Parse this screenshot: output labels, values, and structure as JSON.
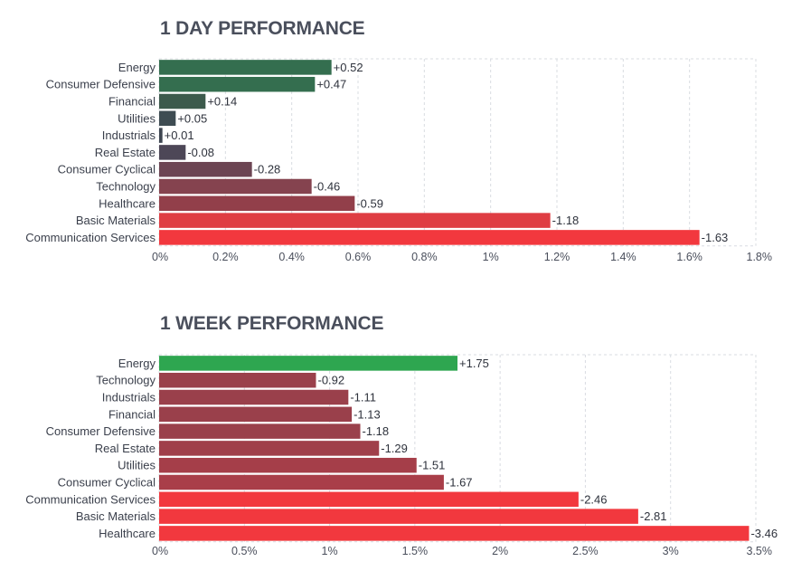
{
  "chart_data": [
    {
      "type": "bar",
      "orientation": "horizontal",
      "title": "1 DAY PERFORMANCE",
      "categories": [
        "Energy",
        "Consumer Defensive",
        "Financial",
        "Utilities",
        "Industrials",
        "Real Estate",
        "Consumer Cyclical",
        "Technology",
        "Healthcare",
        "Basic Materials",
        "Communication Services"
      ],
      "values": [
        0.52,
        0.47,
        0.14,
        0.05,
        0.01,
        -0.08,
        -0.28,
        -0.46,
        -0.59,
        -1.18,
        -1.63
      ],
      "value_labels": [
        "+0.52",
        "+0.47",
        "+0.14",
        "+0.05",
        "+0.01",
        "-0.08",
        "-0.28",
        "-0.46",
        "-0.59",
        "-1.18",
        "-1.63"
      ],
      "bar_colors": [
        "#346e4f",
        "#346e4f",
        "#3c5a4c",
        "#3e4c52",
        "#3d4550",
        "#4d4757",
        "#6c4553",
        "#85434f",
        "#923f4a",
        "#df3d43",
        "#f2383e"
      ],
      "xlim": [
        0,
        1.8
      ],
      "xticks": [
        "0%",
        "0.2%",
        "0.4%",
        "0.6%",
        "0.8%",
        "1%",
        "1.2%",
        "1.4%",
        "1.6%",
        "1.8%"
      ],
      "grid": true
    },
    {
      "type": "bar",
      "orientation": "horizontal",
      "title": "1 WEEK PERFORMANCE",
      "categories": [
        "Energy",
        "Technology",
        "Industrials",
        "Financial",
        "Consumer Defensive",
        "Real Estate",
        "Utilities",
        "Consumer Cyclical",
        "Communication Services",
        "Basic Materials",
        "Healthcare"
      ],
      "values": [
        1.75,
        -0.92,
        -1.11,
        -1.13,
        -1.18,
        -1.29,
        -1.51,
        -1.67,
        -2.46,
        -2.81,
        -3.46
      ],
      "value_labels": [
        "+1.75",
        "-0.92",
        "-1.11",
        "-1.13",
        "-1.18",
        "-1.29",
        "-1.51",
        "-1.67",
        "-2.46",
        "-2.81",
        "-3.46"
      ],
      "bar_colors": [
        "#2ea650",
        "#9a404b",
        "#9a404b",
        "#9a404b",
        "#9a404b",
        "#a03f4a",
        "#a53e49",
        "#a93e49",
        "#f2383e",
        "#f2383e",
        "#f2383e"
      ],
      "xlim": [
        0,
        3.5
      ],
      "xticks": [
        "0%",
        "0.5%",
        "1%",
        "1.5%",
        "2%",
        "2.5%",
        "3%",
        "3.5%"
      ],
      "grid": true
    }
  ]
}
